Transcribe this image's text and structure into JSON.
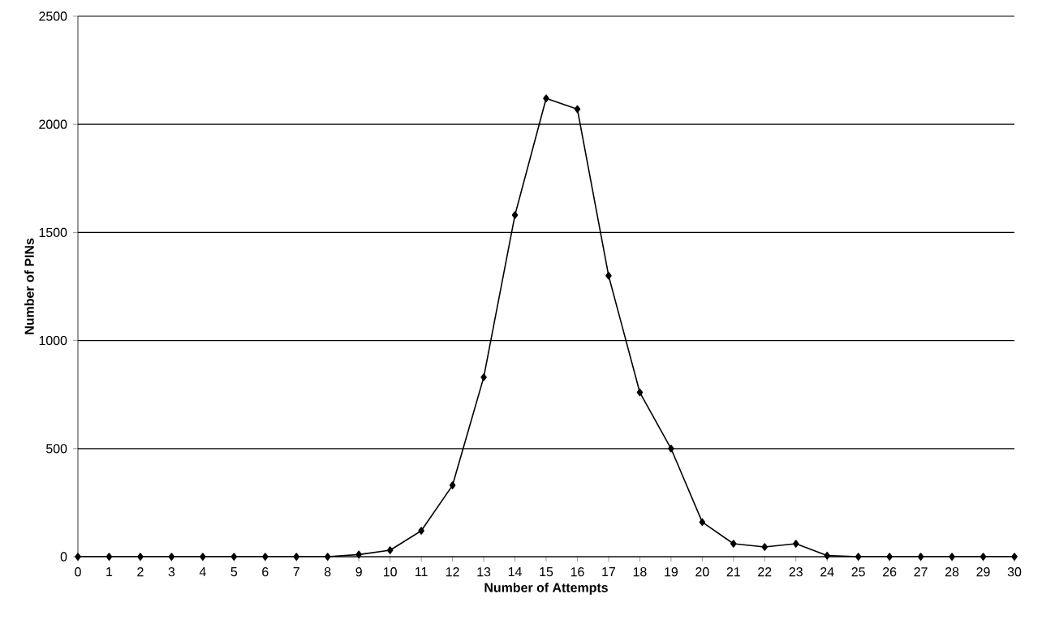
{
  "chart_data": {
    "type": "line",
    "xlabel": "Number of Attempts",
    "ylabel": "Number of PINs",
    "x": [
      0,
      1,
      2,
      3,
      4,
      5,
      6,
      7,
      8,
      9,
      10,
      11,
      12,
      13,
      14,
      15,
      16,
      17,
      18,
      19,
      20,
      21,
      22,
      23,
      24,
      25,
      26,
      27,
      28,
      29,
      30
    ],
    "series": [
      {
        "color": "#000000",
        "values": [
          0,
          0,
          0,
          0,
          0,
          0,
          0,
          0,
          0,
          10,
          30,
          120,
          330,
          830,
          1580,
          2120,
          2070,
          1300,
          760,
          500,
          160,
          60,
          45,
          60,
          5,
          0,
          0,
          0,
          0,
          0,
          0
        ]
      }
    ],
    "xlim": [
      0,
      30
    ],
    "xticks": [
      0,
      1,
      2,
      3,
      4,
      5,
      6,
      7,
      8,
      9,
      10,
      11,
      12,
      13,
      14,
      15,
      16,
      17,
      18,
      19,
      20,
      21,
      22,
      23,
      24,
      25,
      26,
      27,
      28,
      29,
      30
    ],
    "ylim": [
      0,
      2500
    ],
    "yticks": [
      0,
      500,
      1000,
      1500,
      2000,
      2500
    ],
    "grid": "y",
    "marker": "diamond",
    "line_style": "solid"
  }
}
